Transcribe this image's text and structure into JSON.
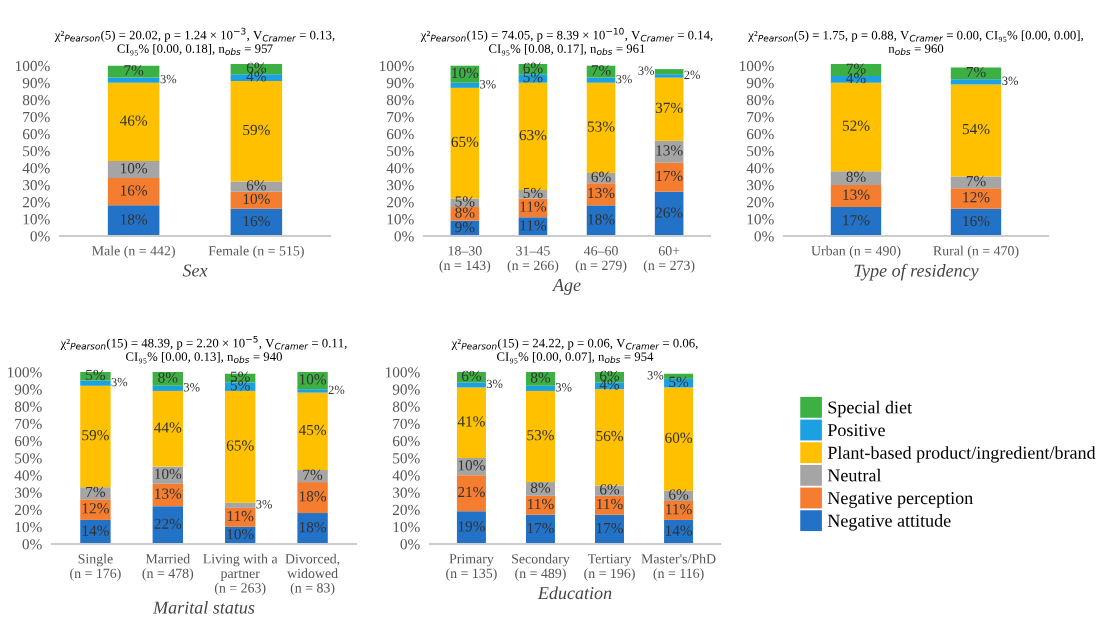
{
  "chart_data": [
    {
      "type": "bar",
      "stacked": true,
      "title": "χ²$_{Pearson}$(5) = 20.02, p = 1.24 × 10$^{−3}$, V$_{Cramer}$ = 0.13,\nCI₉₅% [0.00, 0.18], n$_{obs}$ = 957",
      "xlabel": "Sex",
      "categories": [
        "Male (n = 442)",
        "Female (n = 515)"
      ],
      "ylim": [
        0,
        101
      ],
      "yticks": [
        {
          "value": 0,
          "label": "0%"
        },
        {
          "value": 10,
          "label": "10%"
        },
        {
          "value": 20,
          "label": "20%"
        },
        {
          "value": 30,
          "label": "30%"
        },
        {
          "value": 40,
          "label": "40%"
        },
        {
          "value": 50,
          "label": "50%"
        },
        {
          "value": 60,
          "label": "60%"
        },
        {
          "value": 70,
          "label": "70%"
        },
        {
          "value": 80,
          "label": "80%"
        },
        {
          "value": 90,
          "label": "90%"
        },
        {
          "value": 100,
          "label": "100%"
        }
      ],
      "grid": false,
      "series": [
        {
          "color": "#2272c8",
          "values": [
            18,
            16
          ],
          "value_labels": [
            "18%",
            "16%"
          ]
        },
        {
          "color": "#f47d2f",
          "values": [
            16,
            10
          ],
          "value_labels": [
            "16%",
            "10%"
          ]
        },
        {
          "color": "#a5a5a5",
          "values": [
            10,
            6
          ],
          "value_labels": [
            "10%",
            "6%"
          ]
        },
        {
          "color": "#ffc000",
          "values": [
            46,
            59
          ],
          "value_labels": [
            "46%",
            "59%"
          ]
        },
        {
          "color": "#1ba1e2",
          "values": [
            3,
            4
          ],
          "value_labels": [
            "3%",
            "4%"
          ]
        },
        {
          "color": "#3cb043",
          "values": [
            7,
            6
          ],
          "value_labels": [
            "7%",
            "6%"
          ]
        }
      ]
    },
    {
      "type": "bar",
      "stacked": true,
      "title": "χ²$_{Pearson}$(15) = 74.05, p = 8.39 × 10$^{−10}$, V$_{Cramer}$ = 0.14,\nCI₉₅% [0.08, 0.17], n$_{obs}$ = 961",
      "xlabel": "Age",
      "categories": [
        "18–30\n(n = 143)",
        "31–45\n(n = 266)",
        "46–60\n(n = 279)",
        "60+\n(n = 273)"
      ],
      "ylim": [
        0,
        101
      ],
      "yticks": [
        {
          "value": 0,
          "label": "0%"
        },
        {
          "value": 10,
          "label": "10%"
        },
        {
          "value": 20,
          "label": "20%"
        },
        {
          "value": 30,
          "label": "30%"
        },
        {
          "value": 40,
          "label": "40%"
        },
        {
          "value": 50,
          "label": "50%"
        },
        {
          "value": 60,
          "label": "60%"
        },
        {
          "value": 70,
          "label": "70%"
        },
        {
          "value": 80,
          "label": "80%"
        },
        {
          "value": 90,
          "label": "90%"
        },
        {
          "value": 100,
          "label": "100%"
        }
      ],
      "grid": false,
      "series": [
        {
          "color": "#2272c8",
          "values": [
            9,
            11,
            18,
            26
          ],
          "value_labels": [
            "9%",
            "11%",
            "18%",
            "26%"
          ]
        },
        {
          "color": "#f47d2f",
          "values": [
            8,
            11,
            13,
            17
          ],
          "value_labels": [
            "8%",
            "11%",
            "13%",
            "17%"
          ]
        },
        {
          "color": "#a5a5a5",
          "values": [
            5,
            5,
            6,
            13
          ],
          "value_labels": [
            "5%",
            "5%",
            "6%",
            "13%"
          ]
        },
        {
          "color": "#ffc000",
          "values": [
            65,
            63,
            53,
            37
          ],
          "value_labels": [
            "65%",
            "63%",
            "53%",
            "37%"
          ]
        },
        {
          "color": "#1ba1e2",
          "values": [
            3,
            5,
            3,
            2
          ],
          "value_labels": [
            "3%",
            "5%",
            "3%",
            "2%"
          ]
        },
        {
          "color": "#3cb043",
          "values": [
            10,
            6,
            7,
            3
          ],
          "value_labels": [
            "10%",
            "6%",
            "7%",
            "3%"
          ]
        }
      ]
    },
    {
      "type": "bar",
      "stacked": true,
      "title": "χ²$_{Pearson}$(5) = 1.75, p = 0.88, V$_{Cramer}$ = 0.00, CI₉₅% [0.00, 0.00],\nn$_{obs}$ = 960",
      "xlabel": "Type of residency",
      "categories": [
        "Urban (n = 490)",
        "Rural (n = 470)"
      ],
      "ylim": [
        0,
        101
      ],
      "yticks": [
        {
          "value": 0,
          "label": "0%"
        },
        {
          "value": 10,
          "label": "10%"
        },
        {
          "value": 20,
          "label": "20%"
        },
        {
          "value": 30,
          "label": "30%"
        },
        {
          "value": 40,
          "label": "40%"
        },
        {
          "value": 50,
          "label": "50%"
        },
        {
          "value": 60,
          "label": "60%"
        },
        {
          "value": 70,
          "label": "70%"
        },
        {
          "value": 80,
          "label": "80%"
        },
        {
          "value": 90,
          "label": "90%"
        },
        {
          "value": 100,
          "label": "100%"
        }
      ],
      "grid": false,
      "series": [
        {
          "color": "#2272c8",
          "values": [
            17,
            16
          ],
          "value_labels": [
            "17%",
            "16%"
          ]
        },
        {
          "color": "#f47d2f",
          "values": [
            13,
            12
          ],
          "value_labels": [
            "13%",
            "12%"
          ]
        },
        {
          "color": "#a5a5a5",
          "values": [
            8,
            7
          ],
          "value_labels": [
            "8%",
            "7%"
          ]
        },
        {
          "color": "#ffc000",
          "values": [
            52,
            54
          ],
          "value_labels": [
            "52%",
            "54%"
          ]
        },
        {
          "color": "#1ba1e2",
          "values": [
            4,
            3
          ],
          "value_labels": [
            "4%",
            "3%"
          ]
        },
        {
          "color": "#3cb043",
          "values": [
            7,
            7
          ],
          "value_labels": [
            "7%",
            "7%"
          ]
        }
      ]
    },
    {
      "type": "bar",
      "stacked": true,
      "title": "χ²$_{Pearson}$(15) = 48.39, p = 2.20 × 10$^{−5}$, V$_{Cramer}$ = 0.11,\nCI₉₅% [0.00, 0.13], n$_{obs}$ = 940",
      "xlabel": "Marital status",
      "categories": [
        "Single\n(n = 176)",
        "Married\n(n = 478)",
        "Living with a\npartner\n(n = 263)",
        "Divorced,\nwidowed\n(n = 83)"
      ],
      "ylim": [
        0,
        100
      ],
      "yticks": [
        {
          "value": 0,
          "label": "0%"
        },
        {
          "value": 10,
          "label": "10%"
        },
        {
          "value": 20,
          "label": "20%"
        },
        {
          "value": 30,
          "label": "30%"
        },
        {
          "value": 40,
          "label": "40%"
        },
        {
          "value": 50,
          "label": "50%"
        },
        {
          "value": 60,
          "label": "60%"
        },
        {
          "value": 70,
          "label": "70%"
        },
        {
          "value": 80,
          "label": "80%"
        },
        {
          "value": 90,
          "label": "90%"
        },
        {
          "value": 100,
          "label": "100%"
        }
      ],
      "grid": false,
      "series": [
        {
          "color": "#2272c8",
          "values": [
            14,
            22,
            10,
            18
          ],
          "value_labels": [
            "14%",
            "22%",
            "10%",
            "18%"
          ]
        },
        {
          "color": "#f47d2f",
          "values": [
            12,
            13,
            11,
            18
          ],
          "value_labels": [
            "12%",
            "13%",
            "11%",
            "18%"
          ]
        },
        {
          "color": "#a5a5a5",
          "values": [
            7,
            10,
            3,
            7
          ],
          "value_labels": [
            "7%",
            "10%",
            "3%",
            "7%"
          ]
        },
        {
          "color": "#ffc000",
          "values": [
            59,
            44,
            65,
            45
          ],
          "value_labels": [
            "59%",
            "44%",
            "65%",
            "45%"
          ]
        },
        {
          "color": "#1ba1e2",
          "values": [
            3,
            3,
            5,
            2
          ],
          "value_labels": [
            "3%",
            "3%",
            "5%",
            "2%"
          ]
        },
        {
          "color": "#3cb043",
          "values": [
            5,
            8,
            5,
            10
          ],
          "value_labels": [
            "5%",
            "8%",
            "5%",
            "10%"
          ]
        }
      ]
    },
    {
      "type": "bar",
      "stacked": true,
      "title": "χ²$_{Pearson}$(15) = 24.22, p = 0.06, V$_{Cramer}$ = 0.06,\nCI₉₅% [0.00, 0.07], n$_{obs}$ = 954",
      "xlabel": "Education",
      "categories": [
        "Primary\n(n = 135)",
        "Secondary\n(n = 489)",
        "Tertiary\n(n = 196)",
        "Master's/PhD\n(n = 116)"
      ],
      "ylim": [
        0,
        100
      ],
      "yticks": [
        {
          "value": 0,
          "label": "0%"
        },
        {
          "value": 10,
          "label": "10%"
        },
        {
          "value": 20,
          "label": "20%"
        },
        {
          "value": 30,
          "label": "30%"
        },
        {
          "value": 40,
          "label": "40%"
        },
        {
          "value": 50,
          "label": "50%"
        },
        {
          "value": 60,
          "label": "60%"
        },
        {
          "value": 70,
          "label": "70%"
        },
        {
          "value": 80,
          "label": "80%"
        },
        {
          "value": 90,
          "label": "90%"
        },
        {
          "value": 100,
          "label": "100%"
        }
      ],
      "grid": false,
      "legend": "right",
      "series": [
        {
          "name": "Negative attitude",
          "color": "#2272c8",
          "values": [
            19,
            17,
            17,
            14
          ],
          "value_labels": [
            "19%",
            "17%",
            "17%",
            "14%"
          ]
        },
        {
          "name": "Negative perception",
          "color": "#f47d2f",
          "values": [
            21,
            11,
            11,
            11
          ],
          "value_labels": [
            "21%",
            "11%",
            "11%",
            "11%"
          ]
        },
        {
          "name": "Neutral",
          "color": "#a5a5a5",
          "values": [
            10,
            8,
            6,
            6
          ],
          "value_labels": [
            "10%",
            "8%",
            "6%",
            "6%"
          ]
        },
        {
          "name": "Plant-based product/ingredient/brand",
          "color": "#ffc000",
          "values": [
            41,
            53,
            56,
            60
          ],
          "value_labels": [
            "41%",
            "53%",
            "56%",
            "60%"
          ]
        },
        {
          "name": "Positive",
          "color": "#1ba1e2",
          "values": [
            3,
            3,
            4,
            5
          ],
          "value_labels": [
            "3%",
            "3%",
            "4%",
            "5%"
          ]
        },
        {
          "name": "Special diet",
          "color": "#3cb043",
          "values": [
            6,
            8,
            6,
            3
          ],
          "value_labels": [
            "6%",
            "8%",
            "6%",
            "3%"
          ]
        }
      ]
    }
  ]
}
